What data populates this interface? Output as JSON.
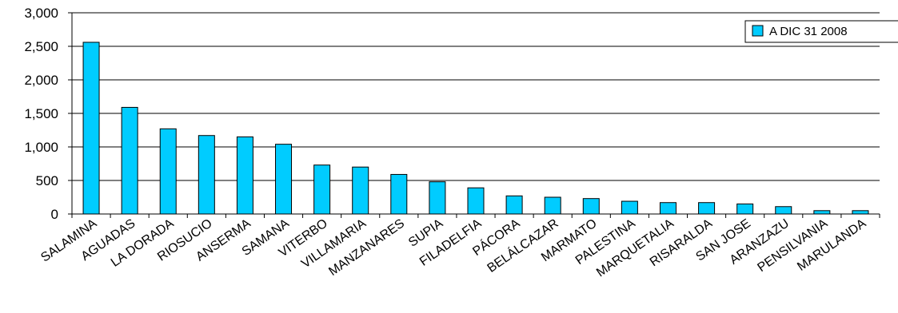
{
  "chart_data": {
    "type": "bar",
    "categories": [
      "SALAMINA",
      "AGUADAS",
      "LA DORADA",
      "RIOSUCIO",
      "ANSERMA",
      "SAMANA",
      "VITERBO",
      "VILLAMARIA",
      "MANZANARES",
      "SUPIA",
      "FILADELFIA",
      "PÁCORA",
      "BELÁLCAZAR",
      "MARMATO",
      "PALESTINA",
      "MARQUETALIA",
      "RISARALDA",
      "SAN JOSE",
      "ARANZAZU",
      "PENSILVANIA",
      "MARULANDA"
    ],
    "series": [
      {
        "name": "A DIC 31 2008",
        "values": [
          2560,
          1590,
          1270,
          1170,
          1150,
          1040,
          730,
          700,
          590,
          480,
          390,
          270,
          250,
          230,
          190,
          170,
          170,
          150,
          110,
          50,
          50
        ]
      }
    ],
    "ylim": [
      0,
      3000
    ],
    "yticks": [
      0,
      500,
      1000,
      1500,
      2000,
      2500,
      3000
    ],
    "ytick_labels": [
      "0",
      "500",
      "1,000",
      "1,500",
      "2,000",
      "2,500",
      "3,000"
    ],
    "grid": true,
    "legend_position": "top-right",
    "colors": {
      "bar_fill": "#00CCFF",
      "bar_stroke": "#000000",
      "grid": "#000000"
    }
  }
}
